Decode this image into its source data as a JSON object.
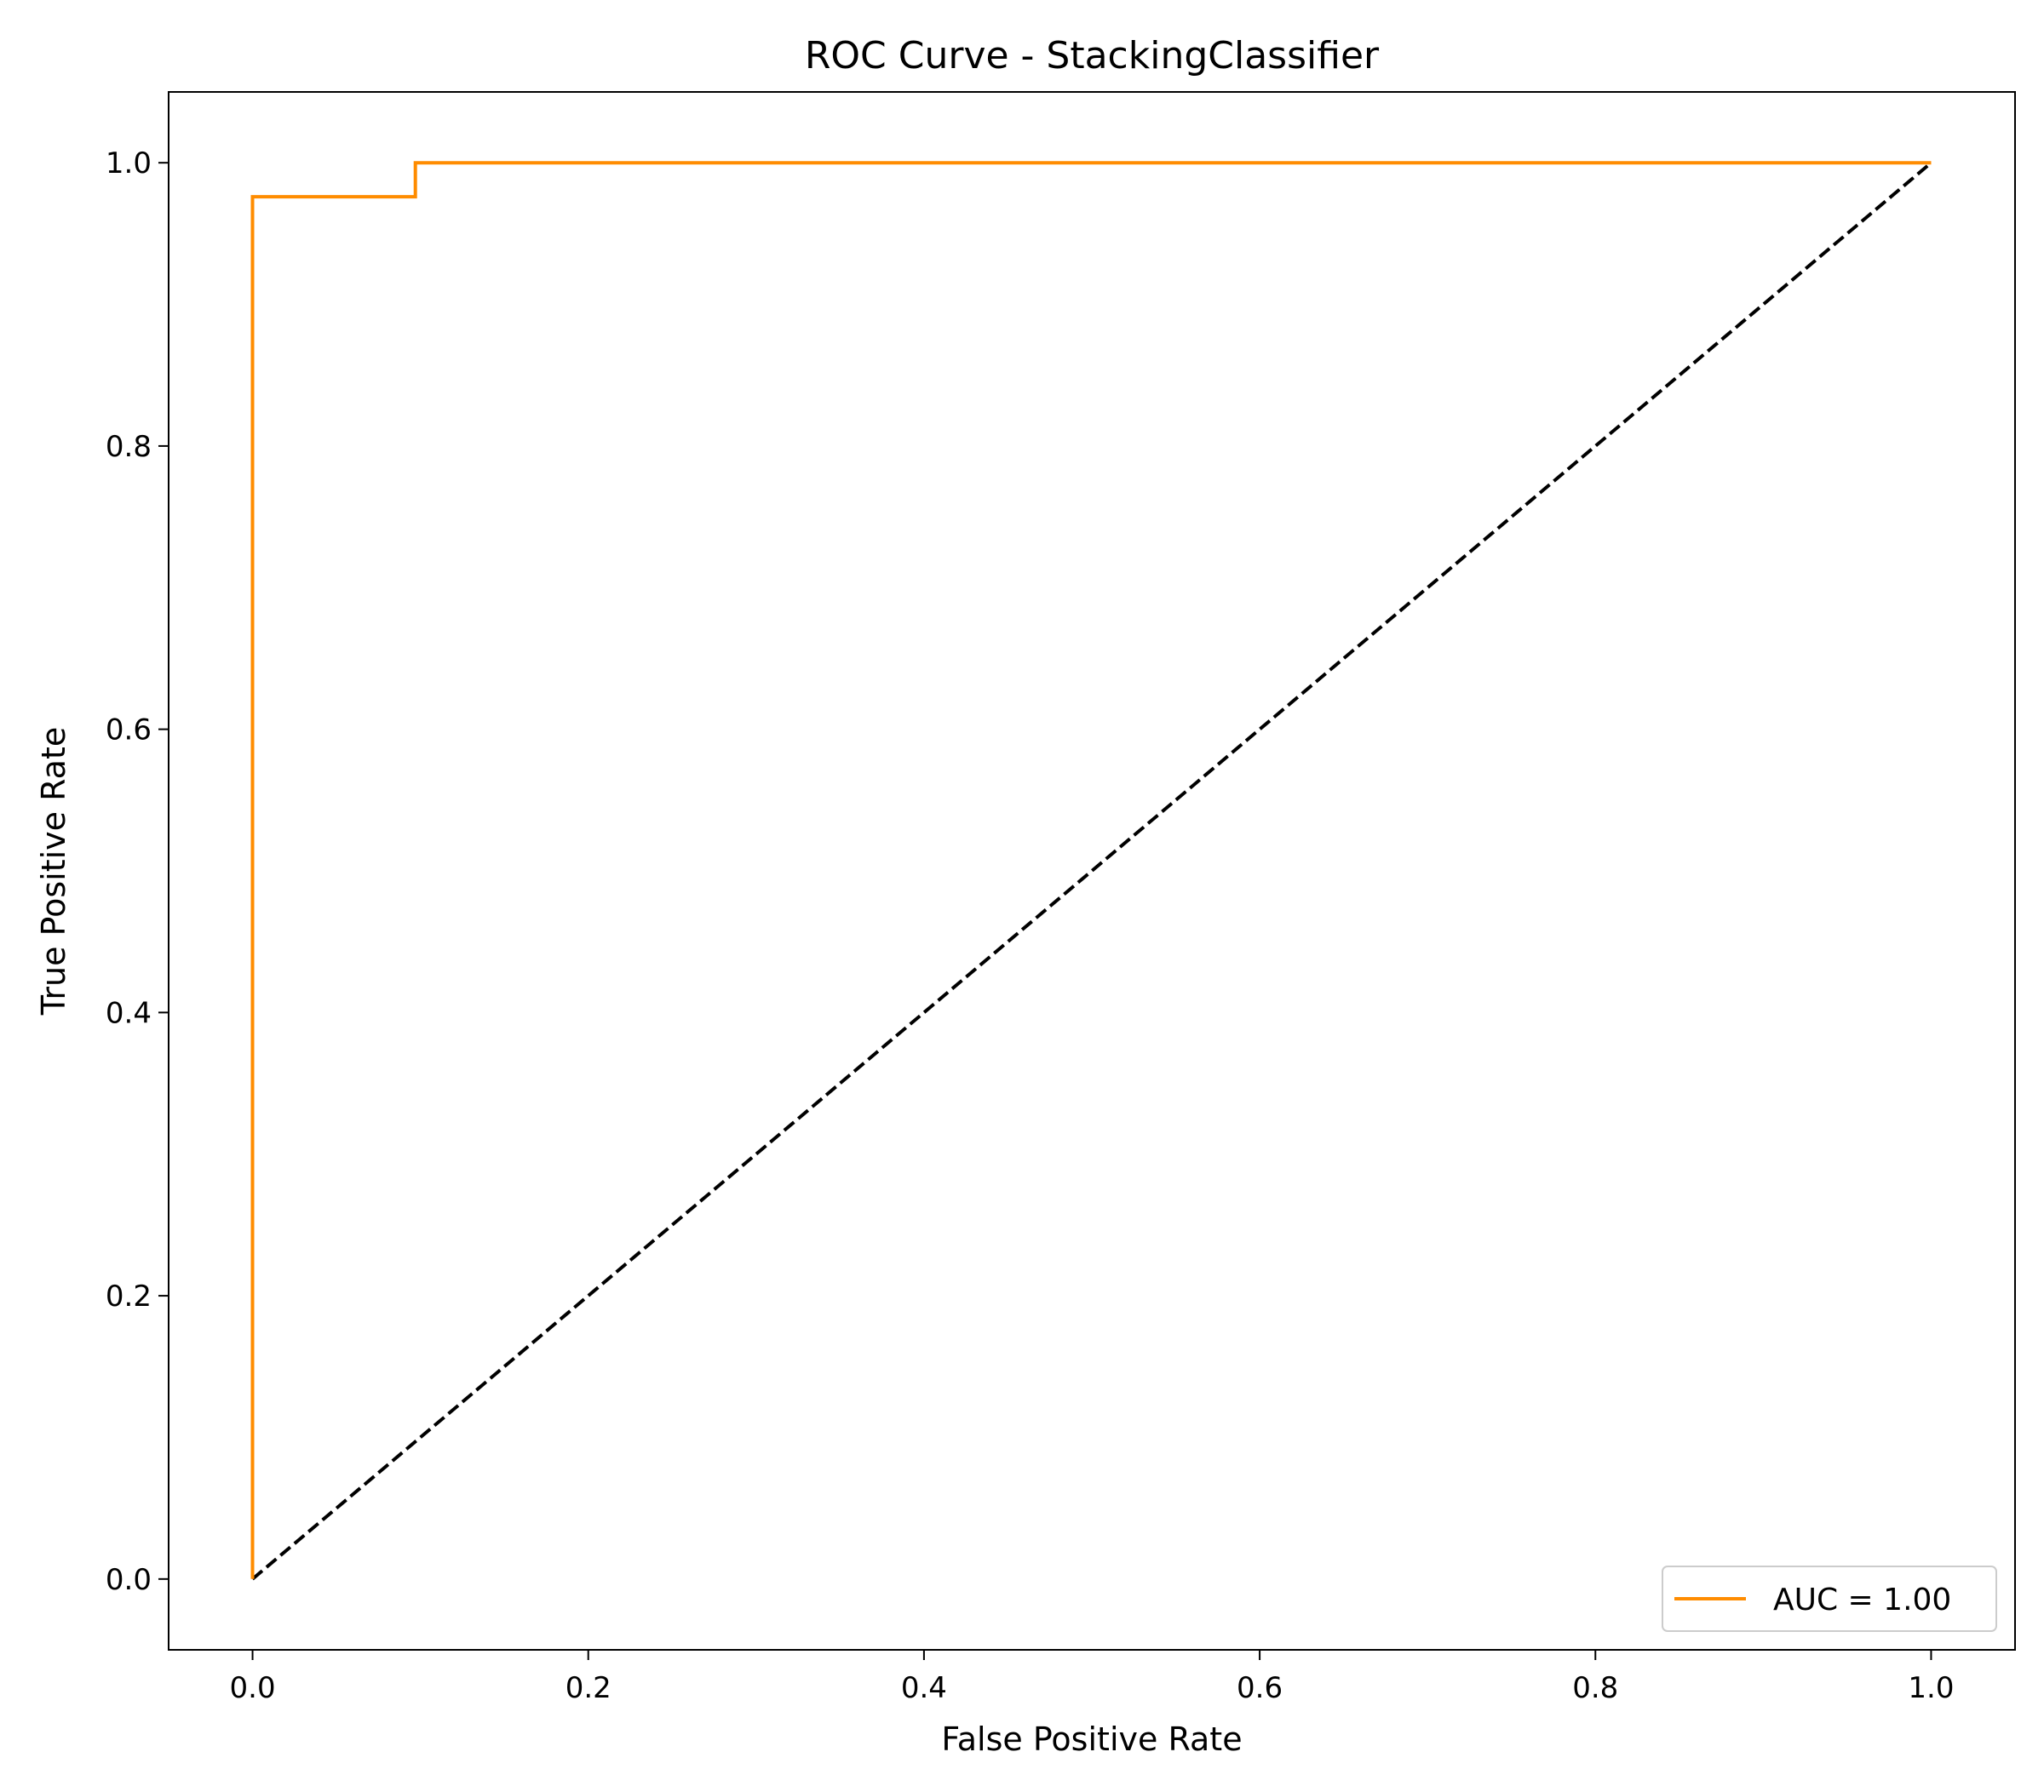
{
  "chart_data": {
    "type": "line",
    "title": "ROC Curve - StackingClassifier",
    "xlabel": "False Positive Rate",
    "ylabel": "True Positive Rate",
    "xlim": [
      -0.05,
      1.05
    ],
    "ylim": [
      -0.05,
      1.05
    ],
    "xticks": [
      0.0,
      0.2,
      0.4,
      0.6,
      0.8,
      1.0
    ],
    "yticks": [
      0.0,
      0.2,
      0.4,
      0.6,
      0.8,
      1.0
    ],
    "xtick_labels": [
      "0.0",
      "0.2",
      "0.4",
      "0.6",
      "0.8",
      "1.0"
    ],
    "ytick_labels": [
      "0.0",
      "0.2",
      "0.4",
      "0.6",
      "0.8",
      "1.0"
    ],
    "grid": false,
    "legend_position": "lower-right",
    "series": [
      {
        "name": "AUC = 1.00",
        "color": "#ff8c00",
        "style": "solid",
        "x": [
          0.0,
          0.0,
          0.097,
          0.097,
          1.0
        ],
        "y": [
          0.0,
          0.976,
          0.976,
          1.0,
          1.0
        ]
      },
      {
        "color": "#000000",
        "style": "dashed",
        "x": [
          0.0,
          1.0
        ],
        "y": [
          0.0,
          1.0
        ]
      }
    ]
  }
}
